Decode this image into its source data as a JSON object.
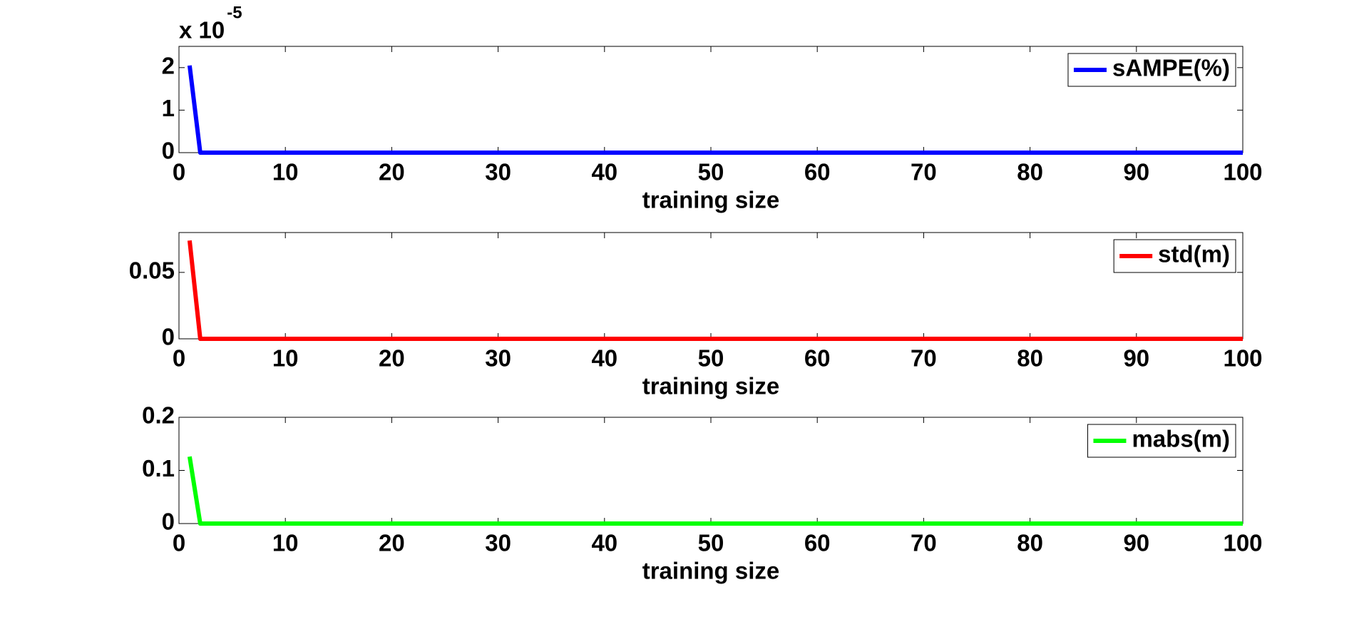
{
  "chart_data": [
    {
      "type": "line",
      "x": [
        1,
        2,
        100
      ],
      "series": [
        {
          "name": "sAMPE(%)",
          "color": "#0000ff",
          "values": [
            2.05,
            0,
            0
          ]
        }
      ],
      "xlim": [
        0,
        100
      ],
      "xticks": [
        0,
        10,
        20,
        30,
        40,
        50,
        60,
        70,
        80,
        90,
        100
      ],
      "ylim": [
        0,
        2.5
      ],
      "yticks": [
        0,
        1,
        2
      ],
      "xlabel": "training size",
      "y_multiplier": "x 10",
      "y_multiplier_exponent": "-5",
      "legend": "upper right",
      "grid": false
    },
    {
      "type": "line",
      "x": [
        1,
        2,
        100
      ],
      "series": [
        {
          "name": "std(m)",
          "color": "#ff0000",
          "values": [
            0.074,
            0,
            0
          ]
        }
      ],
      "xlim": [
        0,
        100
      ],
      "xticks": [
        0,
        10,
        20,
        30,
        40,
        50,
        60,
        70,
        80,
        90,
        100
      ],
      "ylim": [
        0,
        0.08
      ],
      "yticks": [
        0,
        0.05
      ],
      "xlabel": "training size",
      "legend": "upper right",
      "grid": false
    },
    {
      "type": "line",
      "x": [
        1,
        2,
        100
      ],
      "series": [
        {
          "name": "mabs(m)",
          "color": "#00ff00",
          "values": [
            0.126,
            0,
            0
          ]
        }
      ],
      "xlim": [
        0,
        100
      ],
      "xticks": [
        0,
        10,
        20,
        30,
        40,
        50,
        60,
        70,
        80,
        90,
        100
      ],
      "ylim": [
        0,
        0.2
      ],
      "yticks": [
        0,
        0.1,
        0.2
      ],
      "xlabel": "training size",
      "legend": "upper right",
      "grid": false
    }
  ]
}
